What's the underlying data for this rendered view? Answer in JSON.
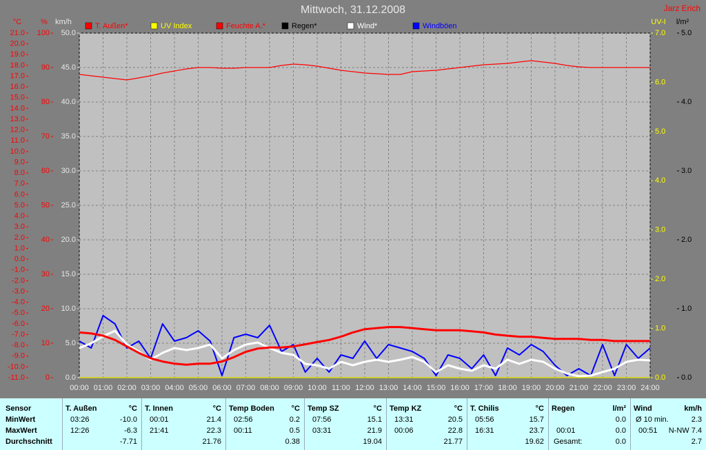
{
  "chart_data": {
    "type": "line",
    "title": "Mittwoch, 31.12.2008",
    "author": "Jarz Erich",
    "x": [
      0,
      0.5,
      1,
      1.5,
      2,
      2.5,
      3,
      3.5,
      4,
      4.5,
      5,
      5.5,
      6,
      6.5,
      7,
      7.5,
      8,
      8.5,
      9,
      9.5,
      10,
      10.5,
      11,
      11.5,
      12,
      12.5,
      13,
      13.5,
      14,
      14.5,
      15,
      15.5,
      16,
      16.5,
      17,
      17.5,
      18,
      18.5,
      19,
      19.5,
      20,
      20.5,
      21,
      21.5,
      22,
      22.5,
      23,
      23.5,
      24
    ],
    "xlim": [
      0,
      24
    ],
    "xticks": [
      {
        "value": 0,
        "label": "00:00"
      },
      {
        "value": 1,
        "label": "01:00"
      },
      {
        "value": 2,
        "label": "02:00"
      },
      {
        "value": 3,
        "label": "03:00"
      },
      {
        "value": 4,
        "label": "04:00"
      },
      {
        "value": 5,
        "label": "05:00"
      },
      {
        "value": 6,
        "label": "06:00"
      },
      {
        "value": 7,
        "label": "07:00"
      },
      {
        "value": 8,
        "label": "08:00"
      },
      {
        "value": 9,
        "label": "09:00"
      },
      {
        "value": 10,
        "label": "10:00"
      },
      {
        "value": 11,
        "label": "11:00"
      },
      {
        "value": 12,
        "label": "12:00"
      },
      {
        "value": 13,
        "label": "13:00"
      },
      {
        "value": 14,
        "label": "14:00"
      },
      {
        "value": 15,
        "label": "15:00"
      },
      {
        "value": 16,
        "label": "16:00"
      },
      {
        "value": 17,
        "label": "17:00"
      },
      {
        "value": 18,
        "label": "18:00"
      },
      {
        "value": 19,
        "label": "19:00"
      },
      {
        "value": 20,
        "label": "20:00"
      },
      {
        "value": 21,
        "label": "21:00"
      },
      {
        "value": 22,
        "label": "22:00"
      },
      {
        "value": 23,
        "label": "23:00"
      },
      {
        "value": 24,
        "label": "24:00"
      }
    ],
    "y_label": "°C",
    "ylim": [
      -11,
      21
    ],
    "yticks": [
      {
        "value": -11,
        "label": "-11.0"
      },
      {
        "value": -10,
        "label": "-10.0"
      },
      {
        "value": -9,
        "label": "-9.0"
      },
      {
        "value": -8,
        "label": "-8.0"
      },
      {
        "value": -7,
        "label": "-7.0"
      },
      {
        "value": -6,
        "label": "-6.0"
      },
      {
        "value": -5,
        "label": "-5.0"
      },
      {
        "value": -4,
        "label": "-4.0"
      },
      {
        "value": -3,
        "label": "-3.0"
      },
      {
        "value": -2,
        "label": "-2.0"
      },
      {
        "value": -1,
        "label": "-1.0"
      },
      {
        "value": 0,
        "label": "0.0"
      },
      {
        "value": 1,
        "label": "1.0"
      },
      {
        "value": 2,
        "label": "2.0"
      },
      {
        "value": 3,
        "label": "3.0"
      },
      {
        "value": 4,
        "label": "4.0"
      },
      {
        "value": 5,
        "label": "5.0"
      },
      {
        "value": 6,
        "label": "6.0"
      },
      {
        "value": 7,
        "label": "7.0"
      },
      {
        "value": 8,
        "label": "8.0"
      },
      {
        "value": 9,
        "label": "9.0"
      },
      {
        "value": 10,
        "label": "10.0"
      },
      {
        "value": 11,
        "label": "11.0"
      },
      {
        "value": 12,
        "label": "12.0"
      },
      {
        "value": 13,
        "label": "13.0"
      },
      {
        "value": 14,
        "label": "14.0"
      },
      {
        "value": 15,
        "label": "15.0"
      },
      {
        "value": 16,
        "label": "16.0"
      },
      {
        "value": 17,
        "label": "17.0"
      },
      {
        "value": 18,
        "label": "18.0"
      },
      {
        "value": 19,
        "label": "19.0"
      },
      {
        "value": 20,
        "label": "20.0"
      },
      {
        "value": 21,
        "label": "21.0"
      }
    ],
    "y2_label": "%",
    "y2lim": [
      0,
      100
    ],
    "y2ticks": [
      0,
      10,
      20,
      30,
      40,
      50,
      60,
      70,
      80,
      90,
      100
    ],
    "y3_label": "km/h",
    "y3lim": [
      0,
      50
    ],
    "y3ticks": [
      {
        "value": 0,
        "label": "0.0"
      },
      {
        "value": 5,
        "label": "5.0"
      },
      {
        "value": 10,
        "label": "10.0"
      },
      {
        "value": 15,
        "label": "15.0"
      },
      {
        "value": 20,
        "label": "20.0"
      },
      {
        "value": 25,
        "label": "25.0"
      },
      {
        "value": 30,
        "label": "30.0"
      },
      {
        "value": 35,
        "label": "35.0"
      },
      {
        "value": 40,
        "label": "40.0"
      },
      {
        "value": 45,
        "label": "45.0"
      },
      {
        "value": 50,
        "label": "50.0"
      }
    ],
    "y4_label": "UV-I",
    "y4lim": [
      0,
      7
    ],
    "y4ticks": [
      {
        "value": 0,
        "label": "0.0"
      },
      {
        "value": 1,
        "label": "1.0"
      },
      {
        "value": 2,
        "label": "2.0"
      },
      {
        "value": 3,
        "label": "3.0"
      },
      {
        "value": 4,
        "label": "4.0"
      },
      {
        "value": 5,
        "label": "5.0"
      },
      {
        "value": 6,
        "label": "6.0"
      },
      {
        "value": 7,
        "label": "7.0"
      }
    ],
    "y5_label": "l/m²",
    "y5lim": [
      0,
      5
    ],
    "y5ticks": [
      {
        "value": 0,
        "label": "0.0"
      },
      {
        "value": 1,
        "label": "1.0"
      },
      {
        "value": 2,
        "label": "2.0"
      },
      {
        "value": 3,
        "label": "3.0"
      },
      {
        "value": 4,
        "label": "4.0"
      },
      {
        "value": 5,
        "label": "5.0"
      }
    ],
    "grid": true,
    "series": [
      {
        "name": "T. Außen*",
        "color": "#ff0000",
        "axis": "y",
        "values": [
          -6.8,
          -6.9,
          -7.1,
          -7.5,
          -8.1,
          -8.7,
          -9.2,
          -9.5,
          -9.7,
          -9.8,
          -9.7,
          -9.7,
          -9.5,
          -9.1,
          -8.6,
          -8.3,
          -8.2,
          -8.2,
          -8.1,
          -7.9,
          -7.7,
          -7.5,
          -7.2,
          -6.8,
          -6.5,
          -6.4,
          -6.3,
          -6.3,
          -6.4,
          -6.5,
          -6.6,
          -6.6,
          -6.6,
          -6.7,
          -6.8,
          -7.0,
          -7.1,
          -7.2,
          -7.2,
          -7.3,
          -7.4,
          -7.4,
          -7.4,
          -7.5,
          -7.5,
          -7.6,
          -7.6,
          -7.6,
          -7.6
        ]
      },
      {
        "name": "UV Index",
        "color": "#ffff00",
        "axis": "y4",
        "values": [
          0,
          0,
          0,
          0,
          0,
          0,
          0,
          0,
          0,
          0,
          0,
          0,
          0,
          0,
          0,
          0,
          0,
          0,
          0,
          0,
          0,
          0,
          0,
          0,
          0,
          0,
          0,
          0,
          0,
          0,
          0,
          0,
          0,
          0,
          0,
          0,
          0,
          0,
          0,
          0,
          0,
          0,
          0,
          0,
          0,
          0,
          0,
          0,
          0
        ]
      },
      {
        "name": "Feuchte A.*",
        "color": "#ff0000",
        "axis": "y2",
        "values": [
          88,
          87.6,
          87.2,
          86.8,
          86.4,
          87,
          87.6,
          88.4,
          89,
          89.6,
          90,
          90,
          89.8,
          89.8,
          90,
          90,
          90,
          90.6,
          91,
          90.8,
          90.4,
          89.8,
          89.2,
          88.8,
          88.4,
          88.2,
          88,
          88,
          88.8,
          89,
          89.2,
          89.6,
          90,
          90.4,
          90.8,
          91,
          91.2,
          91.6,
          92,
          91.6,
          91.2,
          90.6,
          90.2,
          90,
          90,
          90,
          90,
          90,
          90
        ]
      },
      {
        "name": "Regen*",
        "color": "#000000",
        "axis": "y5",
        "values": [
          0,
          0,
          0,
          0,
          0,
          0,
          0,
          0,
          0,
          0,
          0,
          0,
          0,
          0,
          0,
          0,
          0,
          0,
          0,
          0,
          0,
          0,
          0,
          0,
          0,
          0,
          0,
          0,
          0,
          0,
          0,
          0,
          0,
          0,
          0,
          0,
          0,
          0,
          0,
          0,
          0,
          0,
          0,
          0,
          0,
          0,
          0,
          0,
          0
        ]
      },
      {
        "name": "Wind*",
        "color": "#ffffff",
        "axis": "y3",
        "values": [
          4.3,
          5.0,
          6.0,
          6.8,
          4.8,
          3.8,
          2.6,
          3.6,
          4.3,
          4.0,
          4.3,
          4.8,
          2.8,
          4.0,
          4.8,
          5.1,
          4.3,
          3.6,
          3.3,
          2.0,
          1.8,
          1.3,
          2.3,
          1.8,
          2.3,
          2.6,
          2.3,
          2.6,
          3.0,
          2.3,
          0.8,
          1.8,
          1.3,
          1.0,
          1.8,
          1.3,
          2.6,
          2.0,
          2.6,
          2.3,
          1.3,
          0.6,
          0.2,
          0.3,
          0.8,
          1.3,
          2.3,
          2.6,
          2.5
        ]
      },
      {
        "name": "Windböen",
        "color": "#0000ff",
        "axis": "y3",
        "values": [
          5.3,
          4.3,
          9.0,
          7.8,
          4.3,
          5.3,
          2.8,
          7.8,
          5.3,
          5.8,
          6.8,
          5.3,
          0.3,
          5.8,
          6.3,
          5.8,
          7.6,
          3.8,
          4.8,
          0.8,
          2.8,
          0.8,
          3.3,
          2.8,
          5.3,
          2.8,
          4.8,
          4.3,
          3.8,
          2.8,
          0.3,
          3.3,
          2.8,
          1.3,
          3.3,
          0.3,
          4.3,
          3.3,
          4.8,
          3.8,
          1.8,
          0.3,
          1.3,
          0.3,
          4.8,
          0.3,
          4.8,
          2.8,
          4.3
        ]
      }
    ]
  },
  "table": {
    "row_labels": [
      "Sensor",
      "MinWert",
      "MaxWert",
      "Durchschnitt"
    ],
    "groups": [
      {
        "name": "T. Außen",
        "unit": "°C",
        "rows": [
          [
            "03:26",
            "-10.0"
          ],
          [
            "12:26",
            "-6.3"
          ],
          [
            null,
            "-7.71"
          ]
        ]
      },
      {
        "name": "T. Innen",
        "unit": "°C",
        "rows": [
          [
            "00:01",
            "21.4"
          ],
          [
            "21:41",
            "22.3"
          ],
          [
            null,
            "21.76"
          ]
        ]
      },
      {
        "name": "Temp Boden",
        "unit": "°C",
        "rows": [
          [
            "02:56",
            "0.2"
          ],
          [
            "00:11",
            "0.5"
          ],
          [
            null,
            "0.38"
          ]
        ]
      },
      {
        "name": "Temp SZ",
        "unit": "°C",
        "rows": [
          [
            "07:56",
            "15.1"
          ],
          [
            "03:31",
            "21.9"
          ],
          [
            null,
            "19.04"
          ]
        ]
      },
      {
        "name": "Temp KZ",
        "unit": "°C",
        "rows": [
          [
            "13:31",
            "20.5"
          ],
          [
            "00:06",
            "22.8"
          ],
          [
            null,
            "21.77"
          ]
        ]
      },
      {
        "name": "T. Chilis",
        "unit": "°C",
        "rows": [
          [
            "05:56",
            "15.7"
          ],
          [
            "16:31",
            "23.7"
          ],
          [
            null,
            "19.62"
          ]
        ]
      },
      {
        "name": "Regen",
        "unit": "l/m²",
        "rows": [
          [
            null,
            "0.0"
          ],
          [
            "00:01",
            "0.0"
          ],
          [
            "Gesamt:",
            "0.0"
          ]
        ]
      },
      {
        "name": "Wind",
        "unit": "km/h",
        "rows": [
          [
            "Ø 10 min.",
            "2.3"
          ],
          [
            "00:51",
            "N-NW 7.4"
          ],
          [
            null,
            "2.7"
          ]
        ]
      }
    ]
  }
}
